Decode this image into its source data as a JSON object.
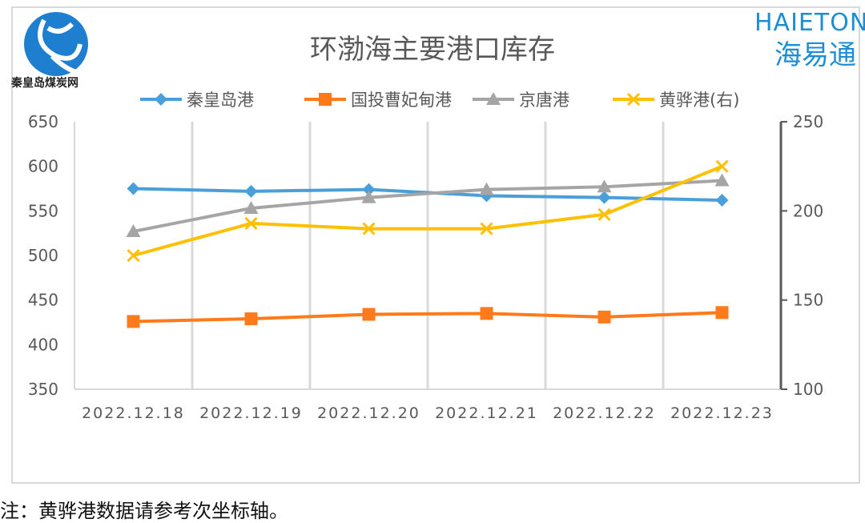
{
  "chart_data": {
    "type": "line",
    "title": "环渤海主要港口库存",
    "categories": [
      "2022.12.18",
      "2022.12.19",
      "2022.12.20",
      "2022.12.21",
      "2022.12.22",
      "2022.12.23"
    ],
    "y_left": {
      "range": [
        350,
        650
      ],
      "ticks": [
        350,
        400,
        450,
        500,
        550,
        600,
        650
      ]
    },
    "y_right": {
      "range": [
        100,
        250
      ],
      "ticks": [
        100,
        150,
        200,
        250
      ]
    },
    "legend_position": "top",
    "series": [
      {
        "name": "秦皇岛港",
        "axis": "left",
        "color": "#4a9fdb",
        "marker": "diamond",
        "values": [
          575,
          572,
          574,
          567,
          565,
          562
        ]
      },
      {
        "name": "国投曹妃甸港",
        "axis": "left",
        "color": "#ff7a1a",
        "marker": "square",
        "values": [
          426,
          429,
          434,
          435,
          431,
          436
        ]
      },
      {
        "name": "京唐港",
        "axis": "left",
        "color": "#a5a5a5",
        "marker": "triangle",
        "values": [
          527,
          553,
          565,
          574,
          577,
          584
        ]
      },
      {
        "name": "黄骅港(右)",
        "axis": "right",
        "color": "#ffc000",
        "marker": "x",
        "values": [
          175,
          193,
          190,
          190,
          198,
          225
        ]
      }
    ]
  },
  "logos": {
    "left": "秦皇岛煤炭网",
    "right_en": "HAIETONG",
    "right_cn": "海易通"
  },
  "note": "注：黄骅港数据请参考次坐标轴。"
}
